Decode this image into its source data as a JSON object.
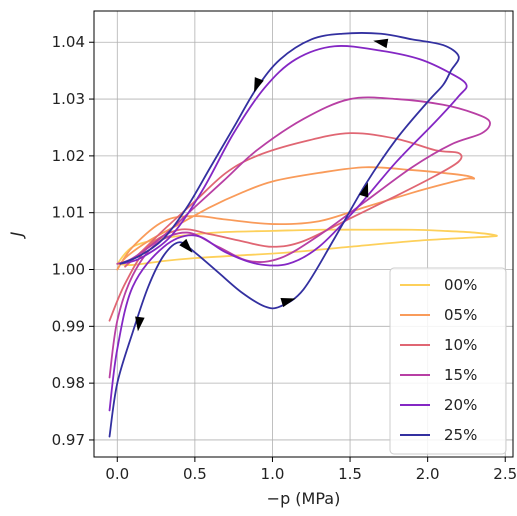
{
  "chart_data": {
    "type": "line",
    "xlabel": "−p (MPa)",
    "ylabel": "J",
    "xlim": [
      -0.15,
      2.55
    ],
    "ylim": [
      0.967,
      1.0455
    ],
    "xticks": [
      0.0,
      0.5,
      1.0,
      1.5,
      2.0,
      2.5
    ],
    "xtick_labels": [
      "0.0",
      "0.5",
      "1.0",
      "1.5",
      "2.0",
      "2.5"
    ],
    "yticks": [
      0.97,
      0.98,
      0.99,
      1.0,
      1.01,
      1.02,
      1.03,
      1.04
    ],
    "ytick_labels": [
      "0.97",
      "0.98",
      "0.99",
      "1.00",
      "1.01",
      "1.02",
      "1.03",
      "1.04"
    ],
    "grid": true,
    "legend_position": "lower-right",
    "series": [
      {
        "name": "00%",
        "color": "#fdd05a",
        "x": [
          0.0,
          0.1,
          0.3,
          0.5,
          0.7,
          1.0,
          1.3,
          1.6,
          1.9,
          2.1,
          2.3,
          2.44,
          2.4,
          2.2,
          1.9,
          1.5,
          1.1,
          0.8,
          0.5,
          0.3,
          0.1,
          0.0
        ],
        "y": [
          1.001,
          1.004,
          1.0055,
          1.0062,
          1.0066,
          1.0068,
          1.007,
          1.007,
          1.007,
          1.0068,
          1.0065,
          1.006,
          1.0058,
          1.0055,
          1.005,
          1.004,
          1.003,
          1.0025,
          1.002,
          1.0015,
          1.0008,
          1.001
        ]
      },
      {
        "name": "05%",
        "color": "#f99b5a",
        "x": [
          0.0,
          0.1,
          0.3,
          0.5,
          0.7,
          1.0,
          1.3,
          1.6,
          1.9,
          2.1,
          2.25,
          2.3,
          2.25,
          2.1,
          1.9,
          1.6,
          1.3,
          1.0,
          0.8,
          0.6,
          0.4,
          0.2,
          0.05,
          0.0
        ],
        "y": [
          1.0,
          1.004,
          1.0085,
          1.0094,
          1.0088,
          1.008,
          1.0085,
          1.011,
          1.0135,
          1.015,
          1.016,
          1.016,
          1.0165,
          1.017,
          1.0175,
          1.018,
          1.017,
          1.0155,
          1.0135,
          1.011,
          1.008,
          1.005,
          1.002,
          1.0
        ]
      },
      {
        "name": "10%",
        "color": "#e06673",
        "x": [
          -0.05,
          0.05,
          0.2,
          0.4,
          0.6,
          0.8,
          1.0,
          1.2,
          1.5,
          1.8,
          2.05,
          2.2,
          2.2,
          2.05,
          1.8,
          1.5,
          1.2,
          0.9,
          0.7,
          0.5,
          0.3,
          0.15,
          0.05
        ],
        "y": [
          0.991,
          0.9975,
          1.004,
          1.007,
          1.0062,
          1.005,
          1.004,
          1.005,
          1.009,
          1.013,
          1.0165,
          1.019,
          1.0205,
          1.021,
          1.023,
          1.024,
          1.0225,
          1.02,
          1.017,
          1.012,
          1.007,
          1.003,
          1.0005
        ]
      },
      {
        "name": "15%",
        "color": "#b83fa4",
        "x": [
          -0.05,
          0.0,
          0.1,
          0.25,
          0.45,
          0.65,
          0.85,
          1.05,
          1.3,
          1.6,
          1.9,
          2.15,
          2.35,
          2.4,
          2.3,
          2.1,
          1.8,
          1.5,
          1.2,
          0.9,
          0.7,
          0.5,
          0.3,
          0.1,
          0.0
        ],
        "y": [
          0.981,
          0.991,
          0.999,
          1.0045,
          1.0065,
          1.004,
          1.0015,
          1.002,
          1.006,
          1.012,
          1.018,
          1.022,
          1.024,
          1.026,
          1.0275,
          1.029,
          1.03,
          1.03,
          1.0265,
          1.021,
          1.016,
          1.011,
          1.006,
          1.002,
          1.001
        ]
      },
      {
        "name": "20%",
        "color": "#8427c4",
        "x": [
          -0.05,
          0.0,
          0.1,
          0.3,
          0.5,
          0.7,
          0.9,
          1.1,
          1.3,
          1.55,
          1.8,
          2.05,
          2.2,
          2.25,
          2.15,
          1.95,
          1.7,
          1.4,
          1.15,
          0.95,
          0.75,
          0.55,
          0.35,
          0.15,
          0.02
        ],
        "y": [
          0.9752,
          0.986,
          0.997,
          1.004,
          1.006,
          1.003,
          1.001,
          1.001,
          1.004,
          1.011,
          1.019,
          1.026,
          1.0305,
          1.0325,
          1.0345,
          1.037,
          1.0385,
          1.0393,
          1.037,
          1.032,
          1.024,
          1.014,
          1.006,
          1.002,
          1.001
        ]
      },
      {
        "name": "25%",
        "color": "#3330a0",
        "x": [
          -0.05,
          0.0,
          0.1,
          0.2,
          0.3,
          0.4,
          0.5,
          0.65,
          0.8,
          0.95,
          1.05,
          1.2,
          1.4,
          1.6,
          1.8,
          2.0,
          2.1,
          2.15,
          2.2,
          2.1,
          1.9,
          1.7,
          1.45,
          1.25,
          1.05,
          0.9,
          0.75,
          0.6,
          0.45,
          0.3,
          0.15,
          0.02
        ],
        "y": [
          0.9706,
          0.98,
          0.989,
          0.997,
          1.0025,
          1.0048,
          1.003,
          0.9995,
          0.996,
          0.9935,
          0.9935,
          0.9965,
          1.0055,
          1.015,
          1.023,
          1.0295,
          1.0325,
          1.035,
          1.0375,
          1.0395,
          1.0405,
          1.0415,
          1.0415,
          1.0405,
          1.037,
          1.032,
          1.025,
          1.018,
          1.011,
          1.0055,
          1.0025,
          1.001
        ]
      }
    ],
    "arrows": [
      {
        "series": "25%",
        "x": 0.14,
        "y": 0.9905,
        "dx": -0.02,
        "dy": -0.004
      },
      {
        "series": "25%",
        "x": 0.45,
        "y": 1.004,
        "dx": 0.05,
        "dy": -0.0015
      },
      {
        "series": "25%",
        "x": 1.1,
        "y": 0.9945,
        "dx": 0.1,
        "dy": 0.0008
      },
      {
        "series": "25%",
        "x": 1.6,
        "y": 1.014,
        "dx": 0.05,
        "dy": 0.0045
      },
      {
        "series": "25%",
        "x": 1.7,
        "y": 1.04,
        "dx": -0.1,
        "dy": 0.0005
      },
      {
        "series": "25%",
        "x": 0.9,
        "y": 1.0325,
        "dx": -0.05,
        "dy": -0.0035
      }
    ]
  }
}
